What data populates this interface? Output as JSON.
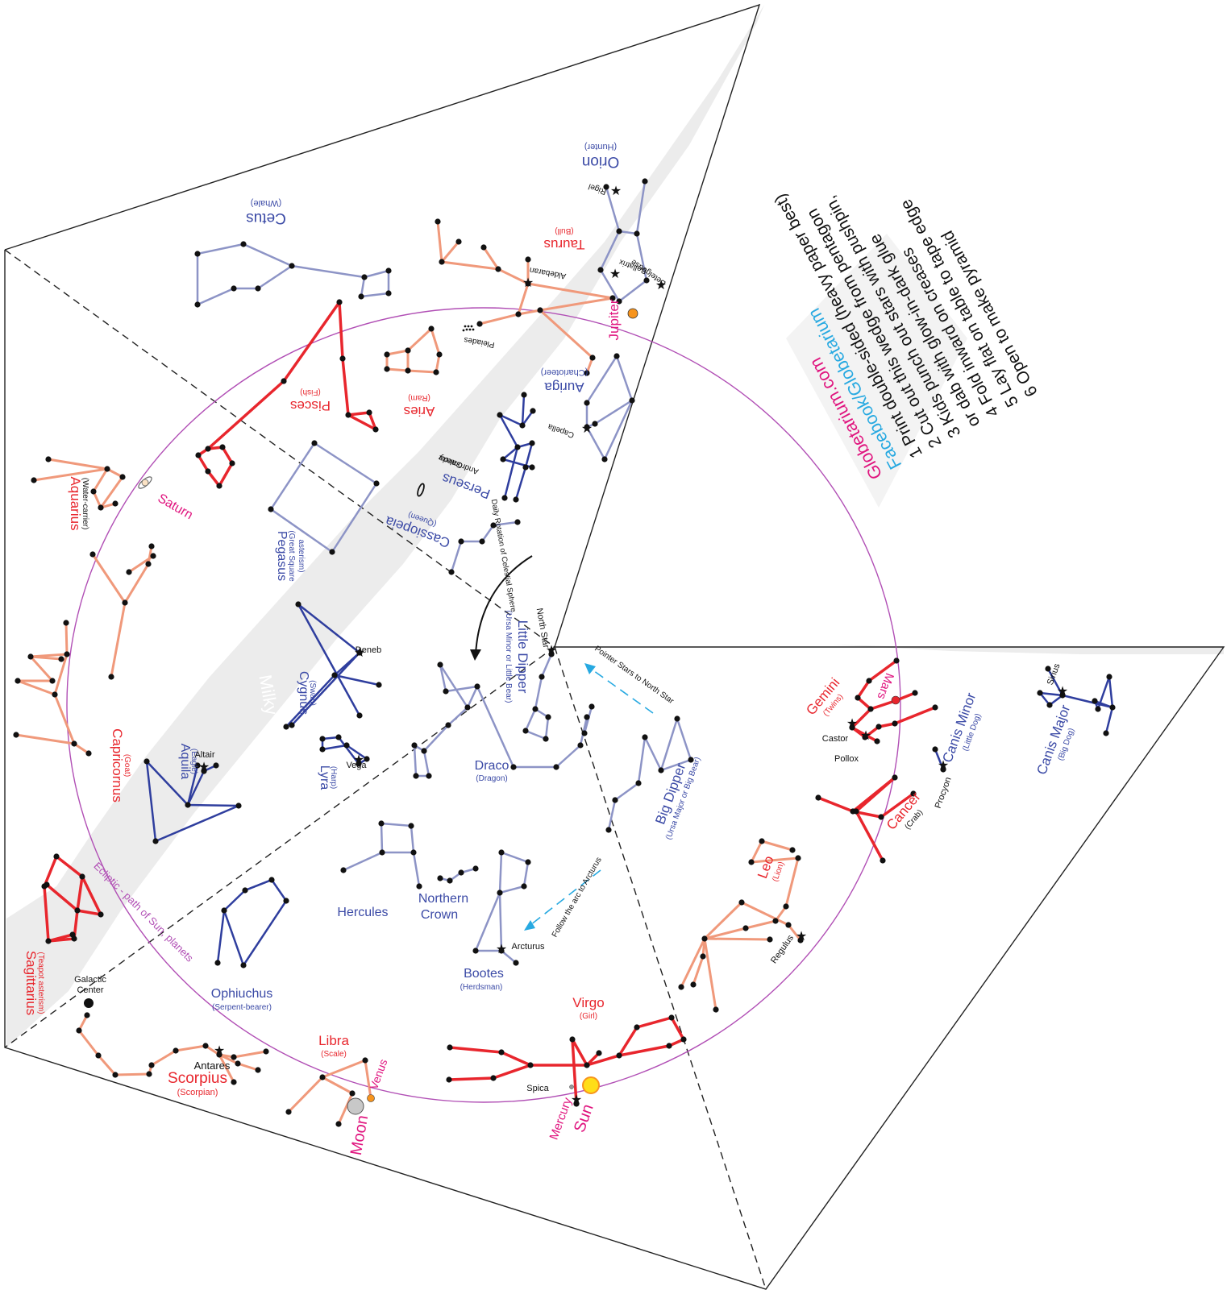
{
  "colors": {
    "zodiac_line": "#f0997b",
    "zodiac_red_line": "#e8262d",
    "northern_line": "#8d94c6",
    "dark_blue_line": "#2f3e9e",
    "label_red": "#e8262d",
    "label_blue": "#3b4aa6",
    "label_magenta": "#e0157f",
    "label_cyan": "#27a9e1",
    "ecliptic": "#b14fb5",
    "milky_way": "#ececec"
  },
  "instructions": {
    "site": "Globetarium.com",
    "facebook": "Facebook/Globetarium",
    "steps": [
      "1 Print double-sided (heavy paper best)",
      "2 Cut out this wedge from pentagon",
      "3 Kids punch out stars with pushpin,",
      "or dab with glow-in-dark glue",
      "4 Fold inward on creases",
      "5 Lay flat on table to tape edge",
      "6 Open to make pyramid"
    ]
  },
  "constellations": {
    "orion": {
      "name": "Orion",
      "sub": "(Hunter)"
    },
    "taurus": {
      "name": "Taurus",
      "sub": "(Bull)"
    },
    "cetus": {
      "name": "Cetus",
      "sub": "(Whale)"
    },
    "pisces": {
      "name": "Pisces",
      "sub": "(Fish)"
    },
    "aries": {
      "name": "Aries",
      "sub": "(Ram)"
    },
    "auriga": {
      "name": "Auriga",
      "sub": "(Charioteer)"
    },
    "perseus": {
      "name": "Perseus"
    },
    "cassiopeia": {
      "name": "Cassiopeia",
      "sub": "(Queen)"
    },
    "aquarius": {
      "name": "Aquarius",
      "sub": "(Water-carrier)"
    },
    "pegasus": {
      "name": "Pegasus",
      "sub1": "(Great Square",
      "sub2": "asterism)"
    },
    "little_dipper": {
      "name": "Little Dipper",
      "sub": "(Ursa Minor or Little Bear)"
    },
    "cygnus": {
      "name": "Cygnus",
      "sub": "(Swan)"
    },
    "capricornus": {
      "name": "Capricornus",
      "sub": "(Goat)"
    },
    "aquila": {
      "name": "Aquila",
      "sub": "(Eagle)"
    },
    "lyra": {
      "name": "Lyra",
      "sub": "(Harp)"
    },
    "draco": {
      "name": "Draco",
      "sub": "(Dragon)"
    },
    "big_dipper": {
      "name": "Big Dipper",
      "sub": "(Ursa Major or Big Bear)"
    },
    "gemini": {
      "name": "Gemini",
      "sub": "(Twins)"
    },
    "canis_minor": {
      "name": "Canis Minor",
      "sub": "(Little Dog)"
    },
    "canis_major": {
      "name": "Canis Major",
      "sub": "(Big Dog)"
    },
    "cancer": {
      "name": "Cancer",
      "sub": "(Crab)"
    },
    "leo": {
      "name": "Leo",
      "sub": "(Lion)"
    },
    "hercules": {
      "name": "Hercules"
    },
    "northern_crown": {
      "name1": "Northern",
      "name2": "Crown"
    },
    "bootes": {
      "name": "Bootes",
      "sub": "(Herdsman)"
    },
    "ophiuchus": {
      "name": "Ophiuchus",
      "sub": "(Serpent-bearer)"
    },
    "sagittarius": {
      "name": "Sagittarius",
      "sub": "(Teapot asterism)"
    },
    "scorpius": {
      "name": "Scorpius",
      "sub": "(Scorpian)"
    },
    "libra": {
      "name": "Libra",
      "sub": "(Scale)"
    },
    "virgo": {
      "name": "Virgo",
      "sub": "(Girl)"
    }
  },
  "stars": {
    "rigel": "Rigel",
    "bellatrix": "Bellatrix",
    "betelgeuse": "Betelgeuse",
    "aldebaran": "Aldebaran",
    "pleiades": "Pleiades",
    "capella": "Capella",
    "andromeda1": "Andromeda",
    "andromeda2": "Galaxy",
    "north_star": "North Star",
    "deneb": "Deneb",
    "altair": "Altair",
    "vega": "Vega",
    "castor": "Castor",
    "pollox": "Pollox",
    "procyon": "Procyon",
    "sirius": "Sirius",
    "regulus": "Regulus",
    "arcturus": "Arcturus",
    "spica": "Spica",
    "antares": "Antares",
    "galactic1": "Galactic",
    "galactic2": "Center"
  },
  "planets": {
    "jupiter": "Jupiter",
    "saturn": "Saturn",
    "mars": "Mars",
    "venus": "Venus",
    "moon": "Moon",
    "mercury": "Mercury",
    "sun": "Sun"
  },
  "annotations": {
    "milky_way": "Milky Way",
    "ecliptic": "Ecliptic - path of Sun, planets",
    "daily_rotation": "Daily Rotation of Celestial Sphere",
    "pointer": "Pointer Stars to North Star",
    "arc": "Follow the arc to Arcturus"
  }
}
